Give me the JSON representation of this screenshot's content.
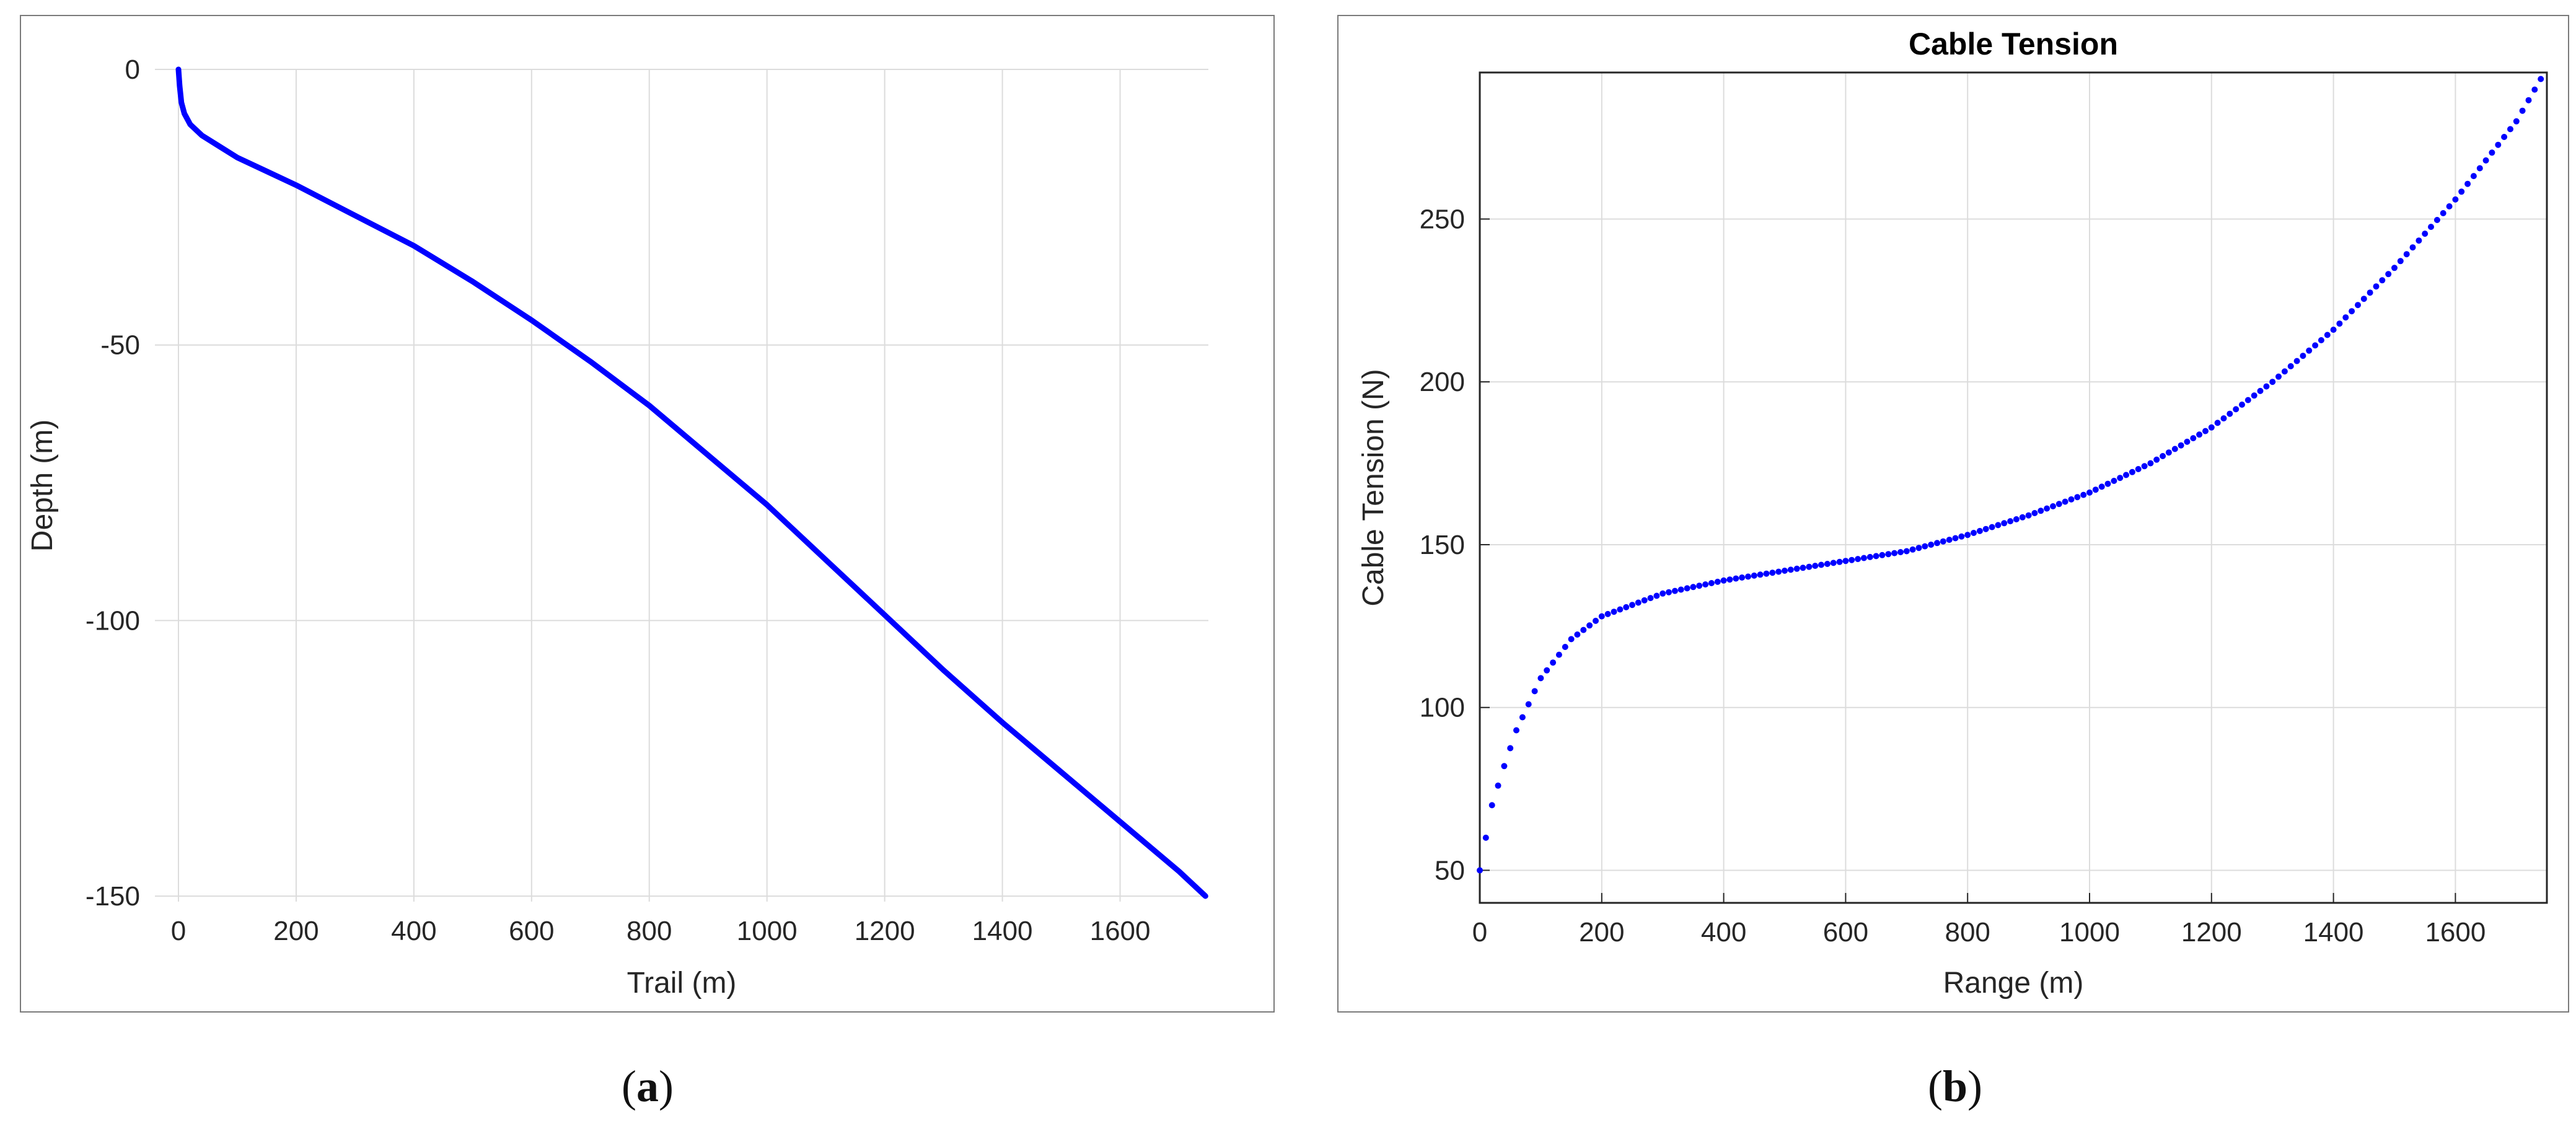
{
  "captions": {
    "a_open": "(",
    "a_letter": "a",
    "a_close": ")",
    "b_open": "(",
    "b_letter": "b",
    "b_close": ")"
  },
  "chart_data": [
    {
      "type": "line",
      "title": "",
      "xlabel": "Trail (m)",
      "ylabel": "Depth (m)",
      "xlim": [
        -40,
        1750
      ],
      "ylim": [
        -151,
        0
      ],
      "xticks": [
        0,
        200,
        400,
        600,
        800,
        1000,
        1200,
        1400,
        1600
      ],
      "yticks": [
        0,
        -50,
        -100,
        -150
      ],
      "grid": true,
      "line_color": "#0000ff",
      "series": [
        {
          "x": [
            0,
            2,
            5,
            10,
            20,
            40,
            70,
            100,
            150,
            200,
            300,
            400,
            500,
            600,
            700,
            800,
            900,
            1000,
            1100,
            1200,
            1300,
            1400,
            1500,
            1600,
            1700,
            1745
          ],
          "y": [
            0,
            -3,
            -6,
            -8,
            -10,
            -12,
            -14,
            -16,
            -18.5,
            -21,
            -26.5,
            -32,
            -38.5,
            -45.5,
            -53,
            -61,
            -70,
            -79,
            -89,
            -99,
            -109,
            -118.5,
            -127.5,
            -136.5,
            -145.5,
            -150
          ]
        }
      ]
    },
    {
      "type": "scatter",
      "title": "Cable Tension",
      "xlabel": "Range (m)",
      "ylabel": "Cable Tension (N)",
      "xlim": [
        0,
        1750
      ],
      "ylim": [
        40,
        295
      ],
      "xticks": [
        0,
        200,
        400,
        600,
        800,
        1000,
        1200,
        1400,
        1600
      ],
      "yticks": [
        50,
        100,
        150,
        200,
        250
      ],
      "grid": true,
      "marker_color": "#0000ff",
      "curve_points": {
        "x": [
          0,
          10,
          20,
          40,
          60,
          80,
          100,
          150,
          200,
          300,
          400,
          500,
          600,
          700,
          800,
          900,
          1000,
          1100,
          1200,
          1300,
          1400,
          1500,
          1600,
          1700,
          1740
        ],
        "y": [
          50,
          60,
          70,
          82,
          93,
          101,
          109,
          121,
          128,
          135,
          139,
          142,
          145,
          148,
          153,
          159,
          166,
          175,
          186,
          200,
          216,
          235,
          256,
          280,
          293
        ]
      }
    }
  ]
}
